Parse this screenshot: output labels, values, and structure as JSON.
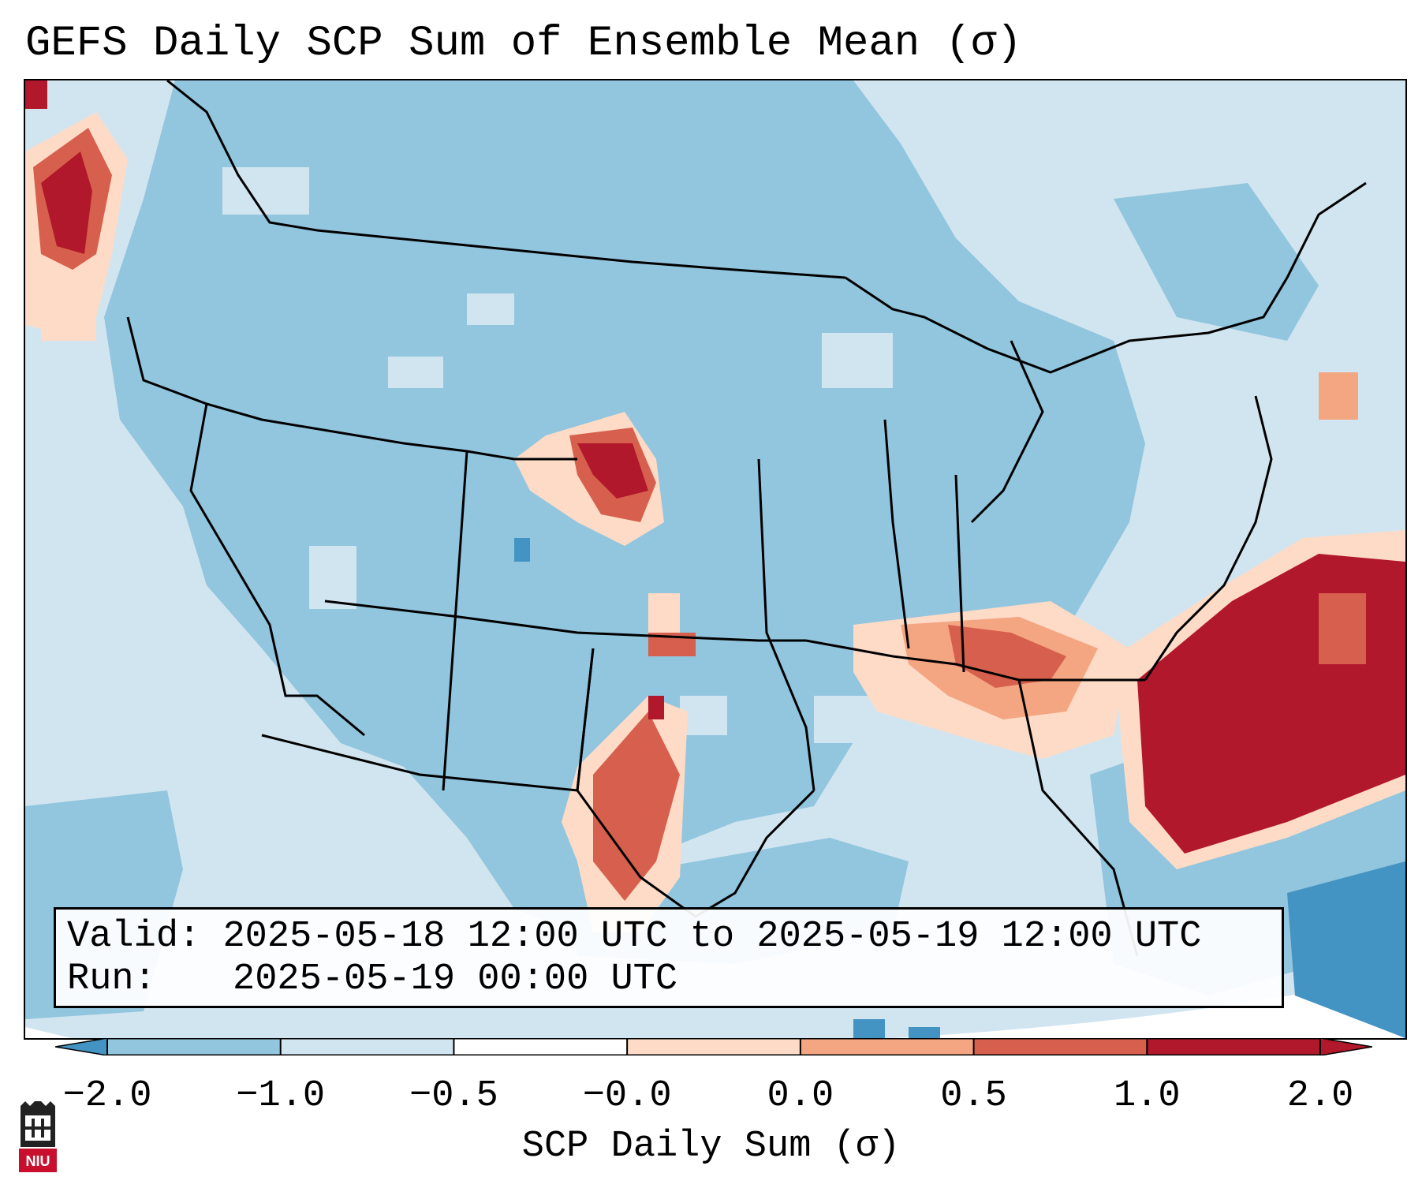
{
  "title": "GEFS Daily SCP Sum of Ensemble Mean (σ)",
  "info": {
    "valid_label": "Valid:",
    "valid_value": "2025-05-18 12:00 UTC to 2025-05-19 12:00 UTC",
    "run_label": "Run:",
    "run_value": "2025-05-19 00:00 UTC"
  },
  "colorbar": {
    "title": "SCP Daily Sum (σ)",
    "ticks": [
      "−2.0",
      "−1.0",
      "−0.5",
      "−0.0",
      "0.0",
      "0.5",
      "1.0",
      "2.0"
    ],
    "colors": [
      "#4393c3",
      "#92c5de",
      "#d1e5f0",
      "#ffffff",
      "#fddbc7",
      "#f4a582",
      "#d6604d",
      "#b2182b"
    ]
  },
  "logo": {
    "text": "NIU",
    "color": "#c8102e"
  },
  "map": {
    "region": "CONUS",
    "colors": {
      "background": "#d1e5f0",
      "neg_mid": "#92c5de",
      "neg_strong": "#4393c3",
      "pos_weak": "#fddbc7",
      "pos_mid": "#f4a582",
      "pos_strong": "#d6604d",
      "pos_max": "#b2182b",
      "outside": "#ffffff",
      "borders": "#000000"
    }
  }
}
